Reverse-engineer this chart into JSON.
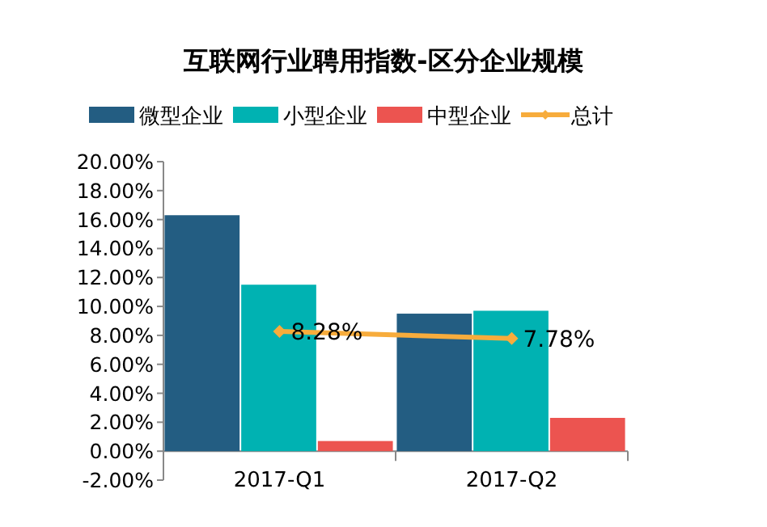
{
  "chart_data": {
    "type": "bar",
    "title": "互联网行业聘用指数-区分企业规模",
    "categories": [
      "2017-Q1",
      "2017-Q2"
    ],
    "series": [
      {
        "name": "微型企业",
        "color": "#235d82",
        "values": [
          16.3,
          9.5
        ]
      },
      {
        "name": "小型企业",
        "color": "#00b2b2",
        "values": [
          11.5,
          9.7
        ]
      },
      {
        "name": "中型企业",
        "color": "#ec5450",
        "values": [
          0.7,
          2.3
        ]
      },
      {
        "name": "总计",
        "type": "line",
        "color": "#f7ac3c",
        "values": [
          8.28,
          7.78
        ],
        "value_labels": [
          "8.28%",
          "7.78%"
        ],
        "marker": "diamond"
      }
    ],
    "ylim": [
      -2,
      20
    ],
    "yticks": [
      {
        "value": -2,
        "label": "-2.00%"
      },
      {
        "value": 0,
        "label": "0.00%"
      },
      {
        "value": 2,
        "label": "2.00%"
      },
      {
        "value": 4,
        "label": "4.00%"
      },
      {
        "value": 6,
        "label": "6.00%"
      },
      {
        "value": 8,
        "label": "8.00%"
      },
      {
        "value": 10,
        "label": "10.00%"
      },
      {
        "value": 12,
        "label": "12.00%"
      },
      {
        "value": 14,
        "label": "14.00%"
      },
      {
        "value": 16,
        "label": "16.00%"
      },
      {
        "value": 18,
        "label": "18.00%"
      },
      {
        "value": 20,
        "label": "20.00%"
      }
    ],
    "grid": false,
    "legend": "top"
  }
}
